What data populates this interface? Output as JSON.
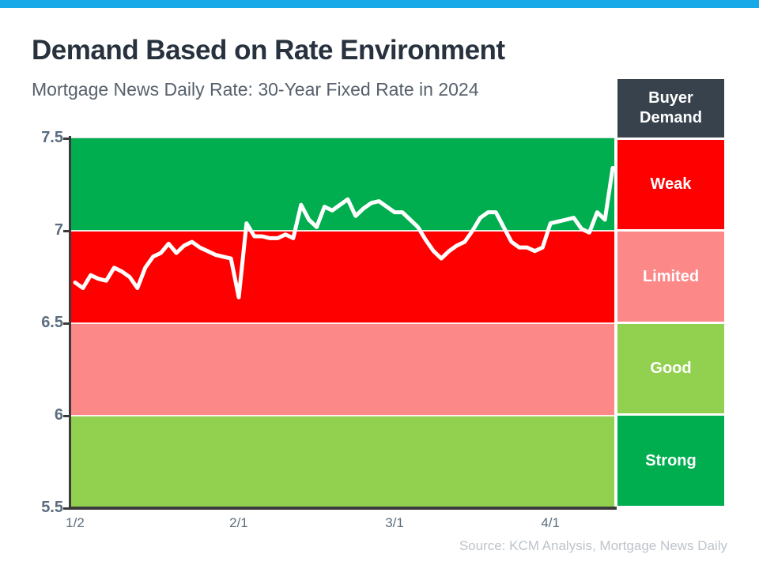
{
  "page": {
    "topbar_color": "#18A9E8",
    "background_color": "#FFFFFF"
  },
  "header": {
    "title": "Demand Based on Rate Environment",
    "subtitle": "Mortgage News Daily Rate: 30-Year Fixed Rate in 2024"
  },
  "legend": {
    "header_label": "Buyer Demand",
    "header_color": "#37424D"
  },
  "source_note": "Source: KCM Analysis, Mortgage News Daily",
  "chart_data": {
    "type": "line",
    "title": "Demand Based on Rate Environment",
    "subtitle": "Mortgage News Daily Rate: 30-Year Fixed Rate in 2024",
    "xlabel": "",
    "ylabel": "",
    "ylim": [
      5.5,
      7.5
    ],
    "grid": false,
    "line_color": "#FFFFFF",
    "axis_color": "#3B3B3B",
    "tick_label_color": "#5B6D7E",
    "yticks": [
      {
        "label": "7.5",
        "value": 7.5
      },
      {
        "label": "7",
        "value": 7.0
      },
      {
        "label": "6.5",
        "value": 6.5
      },
      {
        "label": "6",
        "value": 6.0
      },
      {
        "label": "5.5",
        "value": 5.5
      }
    ],
    "xticks": [
      {
        "label": "1/2",
        "index": 0
      },
      {
        "label": "2/1",
        "index": 21
      },
      {
        "label": "3/1",
        "index": 41
      },
      {
        "label": "4/1",
        "index": 61
      }
    ],
    "bands": [
      {
        "demand": "Weak",
        "range": [
          7.0,
          7.5
        ],
        "color": "#FE0000"
      },
      {
        "demand": "Limited",
        "range": [
          6.5,
          7.0
        ],
        "color": "#FC8888"
      },
      {
        "demand": "Good",
        "range": [
          6.0,
          6.5
        ],
        "color": "#92D050"
      },
      {
        "demand": "Strong",
        "range": [
          5.5,
          6.0
        ],
        "color": "#00AE4F"
      }
    ],
    "series": [
      {
        "name": "30-Year Fixed Rate",
        "dates": [
          "1/2",
          "1/3",
          "1/4",
          "1/5",
          "1/8",
          "1/9",
          "1/10",
          "1/11",
          "1/12",
          "1/16",
          "1/17",
          "1/18",
          "1/19",
          "1/22",
          "1/23",
          "1/24",
          "1/25",
          "1/26",
          "1/29",
          "1/30",
          "1/31",
          "2/1",
          "2/2",
          "2/5",
          "2/6",
          "2/7",
          "2/8",
          "2/9",
          "2/12",
          "2/13",
          "2/14",
          "2/15",
          "2/16",
          "2/20",
          "2/21",
          "2/22",
          "2/23",
          "2/26",
          "2/27",
          "2/28",
          "2/29",
          "3/1",
          "3/4",
          "3/5",
          "3/6",
          "3/7",
          "3/8",
          "3/11",
          "3/12",
          "3/13",
          "3/14",
          "3/15",
          "3/18",
          "3/19",
          "3/20",
          "3/21",
          "3/22",
          "3/25",
          "3/26",
          "3/27",
          "3/28",
          "4/1",
          "4/2",
          "4/3",
          "4/4",
          "4/5",
          "4/8",
          "4/9",
          "4/10",
          "4/11"
        ],
        "values": [
          6.72,
          6.69,
          6.76,
          6.74,
          6.73,
          6.8,
          6.78,
          6.75,
          6.69,
          6.8,
          6.86,
          6.88,
          6.93,
          6.88,
          6.92,
          6.94,
          6.91,
          6.89,
          6.87,
          6.86,
          6.85,
          6.64,
          7.04,
          6.97,
          6.97,
          6.96,
          6.96,
          6.98,
          6.96,
          7.14,
          7.06,
          7.02,
          7.13,
          7.11,
          7.14,
          7.17,
          7.08,
          7.12,
          7.15,
          7.16,
          7.13,
          7.1,
          7.1,
          7.06,
          7.02,
          6.95,
          6.89,
          6.85,
          6.89,
          6.92,
          6.94,
          7.0,
          7.07,
          7.1,
          7.1,
          7.02,
          6.94,
          6.91,
          6.91,
          6.89,
          6.91,
          7.04,
          7.05,
          7.06,
          7.07,
          7.01,
          6.99,
          7.1,
          7.06,
          7.34
        ]
      }
    ]
  }
}
